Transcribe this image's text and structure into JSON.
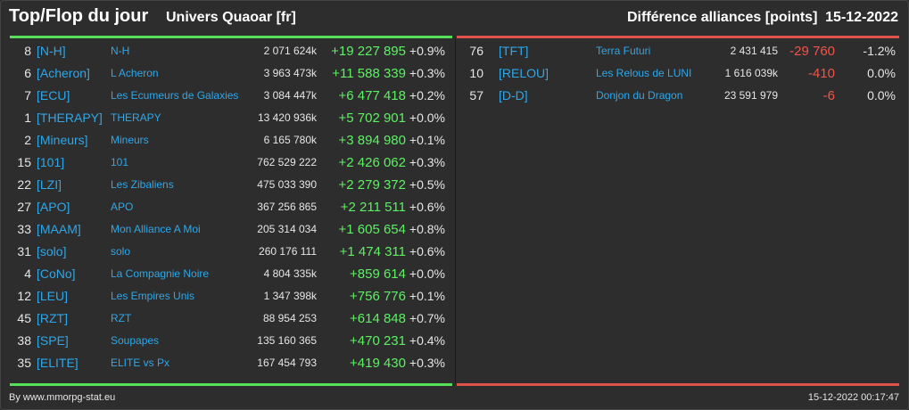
{
  "header": {
    "title": "Top/Flop du jour",
    "universe": "Univers Quaoar [fr]",
    "metric": "Différence alliances [points]",
    "date": "15-12-2022"
  },
  "top": [
    {
      "rank": "8",
      "tag": "[N-H]",
      "name": "N-H",
      "points": "2 071 624k",
      "delta": "+19 227 895",
      "pct": "+0.9%"
    },
    {
      "rank": "6",
      "tag": "[Acheron]",
      "name": "L Acheron",
      "points": "3 963 473k",
      "delta": "+11 588 339",
      "pct": "+0.3%"
    },
    {
      "rank": "7",
      "tag": "[ECU]",
      "name": "Les Ecumeurs de Galaxies",
      "points": "3 084 447k",
      "delta": "+6 477 418",
      "pct": "+0.2%"
    },
    {
      "rank": "1",
      "tag": "[THERAPY]",
      "name": "THERAPY",
      "points": "13 420 936k",
      "delta": "+5 702 901",
      "pct": "+0.0%"
    },
    {
      "rank": "2",
      "tag": "[Mineurs]",
      "name": "Mineurs",
      "points": "6 165 780k",
      "delta": "+3 894 980",
      "pct": "+0.1%"
    },
    {
      "rank": "15",
      "tag": "[101]",
      "name": "101",
      "points": "762 529 222",
      "delta": "+2 426 062",
      "pct": "+0.3%"
    },
    {
      "rank": "22",
      "tag": "[LZI]",
      "name": "Les Zibaliens",
      "points": "475 033 390",
      "delta": "+2 279 372",
      "pct": "+0.5%"
    },
    {
      "rank": "27",
      "tag": "[APO]",
      "name": "APO",
      "points": "367 256 865",
      "delta": "+2 211 511",
      "pct": "+0.6%"
    },
    {
      "rank": "33",
      "tag": "[MAAM]",
      "name": "Mon Alliance A Moi",
      "points": "205 314 034",
      "delta": "+1 605 654",
      "pct": "+0.8%"
    },
    {
      "rank": "31",
      "tag": "[solo]",
      "name": "solo",
      "points": "260 176 111",
      "delta": "+1 474 311",
      "pct": "+0.6%"
    },
    {
      "rank": "4",
      "tag": "[CoNo]",
      "name": "La Compagnie Noire",
      "points": "4 804 335k",
      "delta": "+859 614",
      "pct": "+0.0%"
    },
    {
      "rank": "12",
      "tag": "[LEU]",
      "name": "Les Empires Unis",
      "points": "1 347 398k",
      "delta": "+756 776",
      "pct": "+0.1%"
    },
    {
      "rank": "45",
      "tag": "[RZT]",
      "name": "RZT",
      "points": "88 954 253",
      "delta": "+614 848",
      "pct": "+0.7%"
    },
    {
      "rank": "38",
      "tag": "[SPE]",
      "name": "Soupapes",
      "points": "135 160 365",
      "delta": "+470 231",
      "pct": "+0.4%"
    },
    {
      "rank": "35",
      "tag": "[ELITE]",
      "name": "ELITE vs Px",
      "points": "167 454 793",
      "delta": "+419 430",
      "pct": "+0.3%"
    }
  ],
  "flop": [
    {
      "rank": "76",
      "tag": "[TFT]",
      "name": "Terra Futuri",
      "points": "2 431 415",
      "delta": "-29 760",
      "pct": "-1.2%"
    },
    {
      "rank": "10",
      "tag": "[RELOU]",
      "name": "Les Relous de LUNI",
      "points": "1 616 039k",
      "delta": "-410",
      "pct": "0.0%"
    },
    {
      "rank": "57",
      "tag": "[D-D]",
      "name": "Donjon du Dragon",
      "points": "23 591 979",
      "delta": "-6",
      "pct": "0.0%"
    }
  ],
  "footer": {
    "source": "By www.mmorpg-stat.eu",
    "timestamp": "15-12-2022 00:17:47"
  },
  "colors": {
    "background": "#2d2d2d",
    "link": "#2fa7e8",
    "positive": "#5ef064",
    "negative": "#f0544a",
    "top_rule": "#56e05a",
    "flop_rule": "#e0524b"
  }
}
